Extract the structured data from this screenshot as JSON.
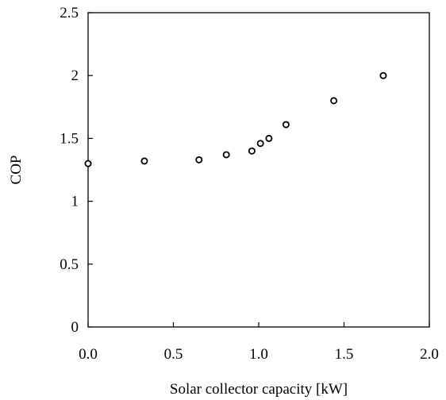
{
  "chart_data": {
    "type": "scatter",
    "title": "",
    "xlabel": "Solar collector capacity [kW]",
    "ylabel": "COP",
    "xlim": [
      0,
      2
    ],
    "ylim": [
      0,
      2.5
    ],
    "x_ticks": [
      "0.0",
      "0.5",
      "1.0",
      "1.5",
      "2.0"
    ],
    "y_ticks": [
      "0",
      "0.5",
      "1",
      "1.5",
      "2",
      "2.5"
    ],
    "grid": false,
    "legend": "none",
    "marker": "open-circle",
    "series": [
      {
        "points": [
          {
            "x": 0.0,
            "y": 1.3
          },
          {
            "x": 0.33,
            "y": 1.32
          },
          {
            "x": 0.65,
            "y": 1.33
          },
          {
            "x": 0.81,
            "y": 1.37
          },
          {
            "x": 0.96,
            "y": 1.4
          },
          {
            "x": 1.01,
            "y": 1.46
          },
          {
            "x": 1.06,
            "y": 1.5
          },
          {
            "x": 1.16,
            "y": 1.61
          },
          {
            "x": 1.44,
            "y": 1.8
          },
          {
            "x": 1.73,
            "y": 2.0
          }
        ]
      }
    ]
  }
}
